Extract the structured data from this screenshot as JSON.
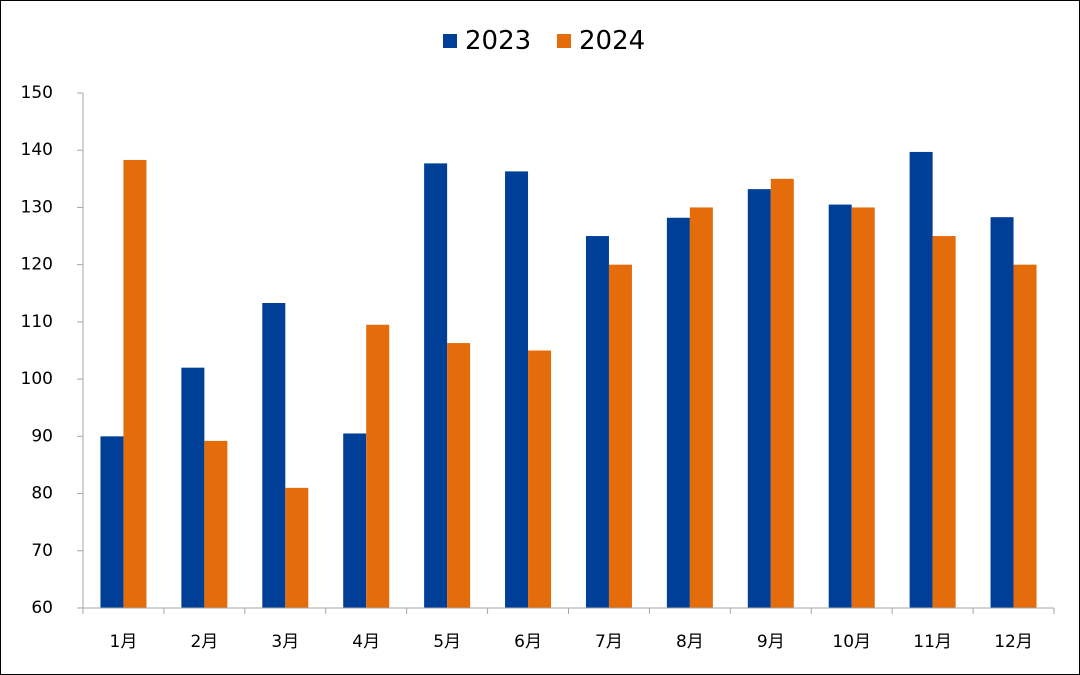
{
  "chart_data": {
    "type": "bar",
    "categories": [
      "1月",
      "2月",
      "3月",
      "4月",
      "5月",
      "6月",
      "7月",
      "8月",
      "9月",
      "10月",
      "11月",
      "12月"
    ],
    "series": [
      {
        "name": "2023",
        "color": "#003F98",
        "values": [
          90,
          102,
          113.3,
          90.5,
          137.7,
          136.3,
          125,
          128.2,
          133.2,
          130.5,
          139.7,
          128.3
        ]
      },
      {
        "name": "2024",
        "color": "#E46C0A",
        "values": [
          138.3,
          89.2,
          81,
          109.5,
          106.3,
          105,
          120,
          130,
          135,
          130,
          125,
          120
        ]
      }
    ],
    "ylim": [
      60,
      150
    ],
    "yticks": [
      60,
      70,
      80,
      90,
      100,
      110,
      120,
      130,
      140,
      150
    ],
    "title": "",
    "xlabel": "",
    "ylabel": "",
    "grid": false,
    "legend_position": "top-center"
  }
}
